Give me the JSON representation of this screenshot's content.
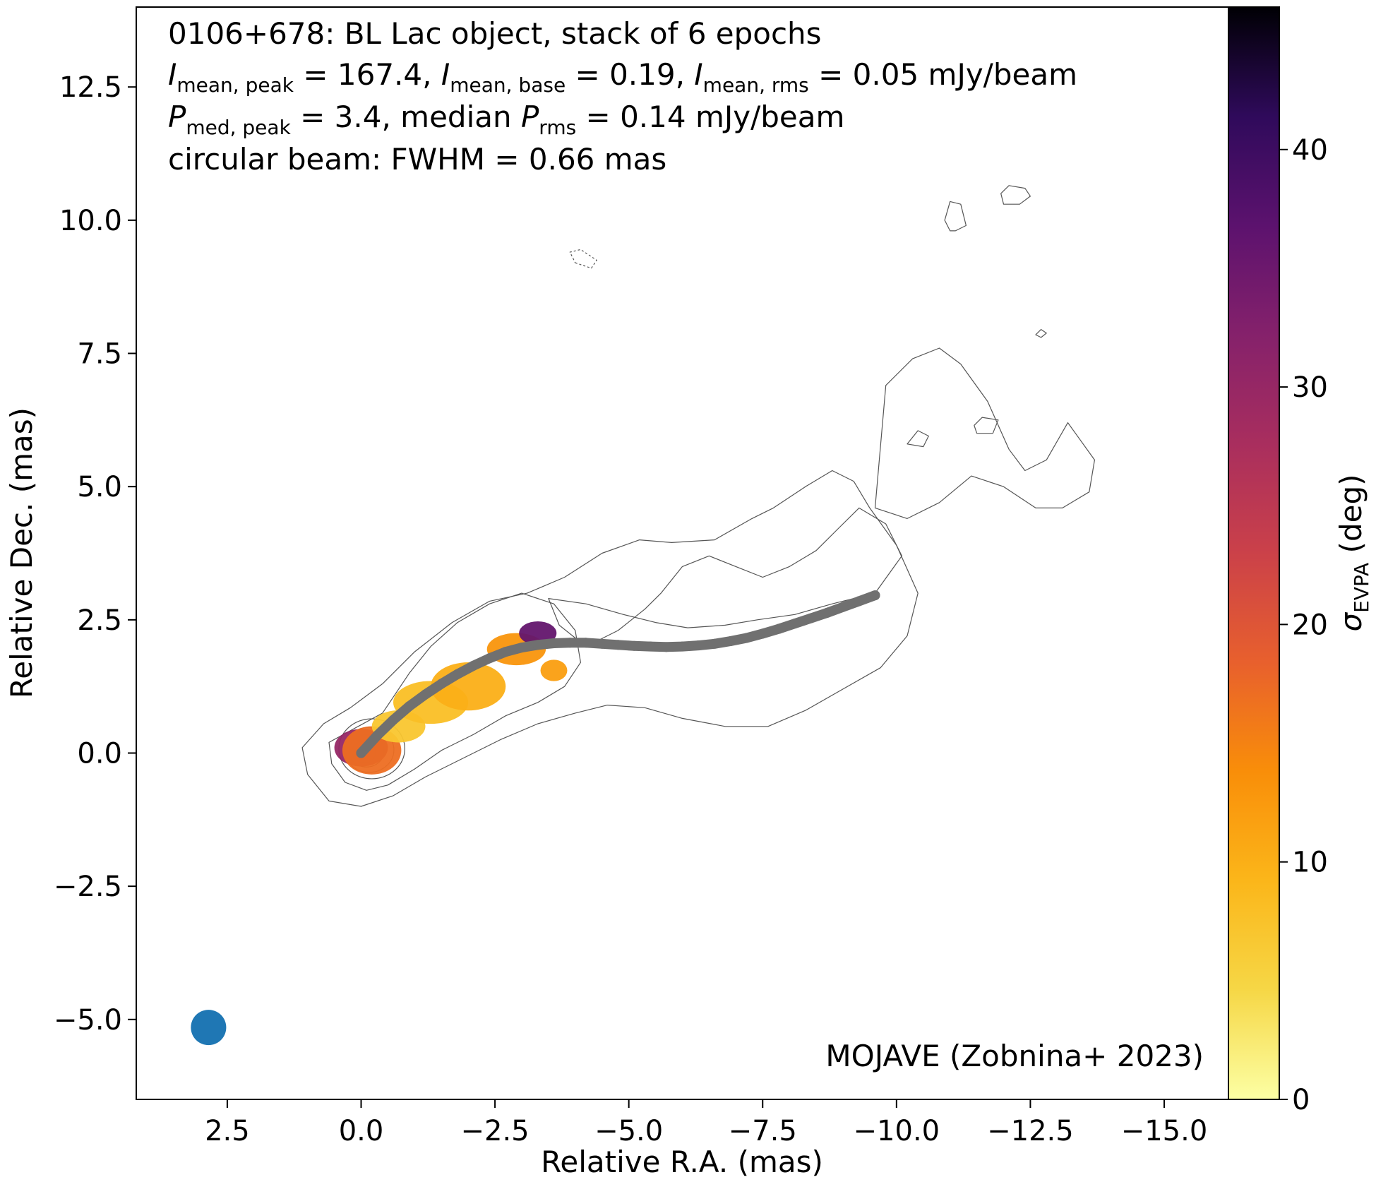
{
  "chart_data": {
    "type": "scatter",
    "annotation": {
      "line1": "0106+678: BL Lac object, stack of 6 epochs",
      "line2_parts": [
        {
          "sym": "I",
          "sub": "mean, peak",
          "text": " = 167.4, "
        },
        {
          "sym": "I",
          "sub": "mean, base",
          "text": " = 0.19, "
        },
        {
          "sym": "I",
          "sub": "mean, rms",
          "text": " = 0.05 mJy/beam"
        }
      ],
      "line3_parts": [
        {
          "pre": "",
          "sym": "P",
          "sub": "med, peak",
          "text": " = 3.4, "
        },
        {
          "pre": "median ",
          "sym": "P",
          "sub": "rms",
          "text": " = 0.14 mJy/beam"
        }
      ],
      "line4": "circular beam: FWHM = 0.66 mas"
    },
    "credit": "MOJAVE (Zobnina+ 2023)",
    "xlabel": "Relative R.A. (mas)",
    "ylabel": "Relative Dec. (mas)",
    "colorbar_label": {
      "sym": "σ",
      "sub": "EVPA",
      "text": " (deg)"
    },
    "xlim": [
      4.2,
      -16.2
    ],
    "ylim": [
      -6.5,
      14.0
    ],
    "x_ticks": [
      2.5,
      0.0,
      -2.5,
      -5.0,
      -7.5,
      -10.0,
      -12.5,
      -15.0
    ],
    "x_tick_labels": [
      "2.5",
      "0.0",
      "−2.5",
      "−5.0",
      "−7.5",
      "−10.0",
      "−12.5",
      "−15.0"
    ],
    "y_ticks": [
      12.5,
      10.0,
      7.5,
      5.0,
      2.5,
      0.0,
      -2.5,
      -5.0
    ],
    "y_tick_labels": [
      "12.5",
      "10.0",
      "7.5",
      "5.0",
      "2.5",
      "0.0",
      "−2.5",
      "−5.0"
    ],
    "colorbar_range": [
      0,
      46
    ],
    "colorbar_ticks": [
      0,
      10,
      20,
      30,
      40
    ],
    "colorbar_tick_labels": [
      "0",
      "10",
      "20",
      "30",
      "40"
    ],
    "colormap": "inferno_r",
    "beam": {
      "x": 2.85,
      "y": -5.15,
      "fwhm_mas": 0.66,
      "color": "#1f77b4"
    },
    "ridgeline": {
      "color": "#707070",
      "x": [
        0.0,
        -0.3,
        -0.6,
        -0.9,
        -1.2,
        -1.5,
        -1.8,
        -2.1,
        -2.4,
        -2.7,
        -3.0,
        -3.3,
        -3.6,
        -3.9,
        -4.2,
        -4.5,
        -4.8,
        -5.1,
        -5.4,
        -5.7,
        -6.0,
        -6.3,
        -6.6,
        -6.9,
        -7.2,
        -7.5,
        -7.8,
        -8.1,
        -8.4,
        -8.7,
        -9.0,
        -9.3,
        -9.6
      ],
      "y": [
        0.0,
        0.33,
        0.62,
        0.88,
        1.1,
        1.3,
        1.48,
        1.64,
        1.78,
        1.9,
        1.98,
        2.03,
        2.06,
        2.07,
        2.07,
        2.05,
        2.03,
        2.01,
        2.0,
        1.99,
        2.0,
        2.02,
        2.05,
        2.1,
        2.16,
        2.24,
        2.33,
        2.43,
        2.53,
        2.63,
        2.74,
        2.85,
        2.96
      ]
    },
    "polarization_blobs": [
      {
        "x": 0.0,
        "y": 0.1,
        "rx": 0.5,
        "ry": 0.35,
        "sigma": 30
      },
      {
        "x": -0.2,
        "y": 0.05,
        "rx": 0.55,
        "ry": 0.45,
        "sigma": 17
      },
      {
        "x": -0.7,
        "y": 0.5,
        "rx": 0.5,
        "ry": 0.3,
        "sigma": 7
      },
      {
        "x": -1.3,
        "y": 0.95,
        "rx": 0.7,
        "ry": 0.4,
        "sigma": 8
      },
      {
        "x": -2.0,
        "y": 1.25,
        "rx": 0.7,
        "ry": 0.45,
        "sigma": 10
      },
      {
        "x": -2.9,
        "y": 1.95,
        "rx": 0.55,
        "ry": 0.3,
        "sigma": 13
      },
      {
        "x": -3.3,
        "y": 2.25,
        "rx": 0.35,
        "ry": 0.22,
        "sigma": 36
      },
      {
        "x": -3.6,
        "y": 1.55,
        "rx": 0.25,
        "ry": 0.2,
        "sigma": 12
      }
    ],
    "contours": [
      {
        "kind": "solid",
        "x": [
          0.6,
          0.55,
          0.3,
          -0.1,
          -0.5,
          -1.0,
          -1.5,
          -2.1,
          -2.7,
          -3.3,
          -3.8,
          -4.1,
          -4.0,
          -3.6,
          -3.0,
          -2.4,
          -1.8,
          -1.3,
          -0.9,
          -0.6,
          -0.4
        ],
        "y": [
          0.2,
          -0.2,
          -0.55,
          -0.7,
          -0.6,
          -0.3,
          0.05,
          0.35,
          0.7,
          0.95,
          1.25,
          1.7,
          2.3,
          2.8,
          3.0,
          2.8,
          2.45,
          2.0,
          1.5,
          1.05,
          0.75
        ]
      },
      {
        "kind": "solid",
        "x": [
          1.1,
          1.0,
          0.6,
          0.0,
          -0.6,
          -1.2,
          -1.9,
          -2.6,
          -3.3,
          -4.0,
          -4.6,
          -5.3,
          -6.0,
          -6.8,
          -7.6,
          -8.3,
          -9.0,
          -9.7,
          -10.2,
          -10.4,
          -10.0,
          -9.5,
          -9.2,
          -8.8,
          -8.3,
          -7.7,
          -7.3,
          -6.6,
          -5.8,
          -5.2,
          -4.5,
          -3.8,
          -3.1,
          -2.4,
          -1.7,
          -1.0,
          -0.4,
          0.2,
          0.7
        ],
        "y": [
          0.1,
          -0.4,
          -0.9,
          -1.0,
          -0.8,
          -0.45,
          -0.1,
          0.25,
          0.55,
          0.75,
          0.9,
          0.85,
          0.65,
          0.5,
          0.5,
          0.8,
          1.2,
          1.6,
          2.2,
          3.0,
          3.9,
          4.6,
          5.1,
          5.3,
          5.0,
          4.6,
          4.4,
          4.0,
          3.95,
          4.0,
          3.75,
          3.3,
          3.0,
          2.85,
          2.45,
          1.9,
          1.3,
          0.85,
          0.55
        ]
      },
      {
        "kind": "solid",
        "x": [
          -3.5,
          -4.2,
          -4.9,
          -5.5,
          -6.1,
          -6.8,
          -7.4,
          -8.1,
          -8.8,
          -9.6,
          -10.1,
          -9.8,
          -9.3,
          -8.9,
          -8.5,
          -8.0,
          -7.5,
          -7.0,
          -6.5,
          -6.0,
          -5.6,
          -5.3,
          -4.8,
          -4.2,
          -3.7
        ],
        "y": [
          2.9,
          2.8,
          2.6,
          2.45,
          2.35,
          2.4,
          2.5,
          2.6,
          2.8,
          3.0,
          3.7,
          4.3,
          4.6,
          4.2,
          3.8,
          3.5,
          3.3,
          3.5,
          3.7,
          3.5,
          3.0,
          2.7,
          2.3,
          2.0,
          2.4
        ]
      },
      {
        "kind": "solid",
        "x": [
          -11.1,
          -11.3,
          -11.2,
          -11.0,
          -10.9,
          -11.0
        ],
        "y": [
          9.8,
          9.9,
          10.3,
          10.35,
          10.0,
          9.8
        ]
      },
      {
        "kind": "solid",
        "x": [
          -12.0,
          -12.3,
          -12.5,
          -12.4,
          -12.1,
          -11.95,
          -12.0
        ],
        "y": [
          10.3,
          10.3,
          10.45,
          10.6,
          10.65,
          10.5,
          10.3
        ]
      },
      {
        "kind": "dashed",
        "x": [
          -4.0,
          -4.3,
          -4.4,
          -4.1,
          -3.9,
          -4.0
        ],
        "y": [
          9.2,
          9.1,
          9.25,
          9.45,
          9.4,
          9.2
        ]
      },
      {
        "kind": "solid",
        "x": [
          -12.7,
          -12.6,
          -12.7,
          -12.8,
          -12.7
        ],
        "y": [
          7.8,
          7.85,
          7.95,
          7.88,
          7.8
        ]
      },
      {
        "kind": "solid",
        "x": [
          -10.2,
          -10.5,
          -10.6,
          -10.4,
          -10.2
        ],
        "y": [
          5.8,
          5.75,
          5.95,
          6.05,
          5.8
        ]
      },
      {
        "kind": "solid",
        "x": [
          -11.5,
          -11.8,
          -11.9,
          -11.6,
          -11.45,
          -11.5
        ],
        "y": [
          6.0,
          6.0,
          6.25,
          6.3,
          6.15,
          6.0
        ]
      },
      {
        "kind": "solid",
        "x": [
          -9.6,
          -10.2,
          -10.8,
          -11.4,
          -12.0,
          -12.6,
          -13.1,
          -13.6,
          -13.7,
          -13.2,
          -12.8,
          -12.4,
          -12.1,
          -11.7,
          -11.2,
          -10.8,
          -10.3,
          -9.8
        ],
        "y": [
          4.6,
          4.4,
          4.7,
          5.2,
          5.0,
          4.6,
          4.6,
          4.9,
          5.5,
          6.2,
          5.5,
          5.3,
          5.7,
          6.6,
          7.3,
          7.6,
          7.4,
          6.9
        ]
      }
    ]
  }
}
